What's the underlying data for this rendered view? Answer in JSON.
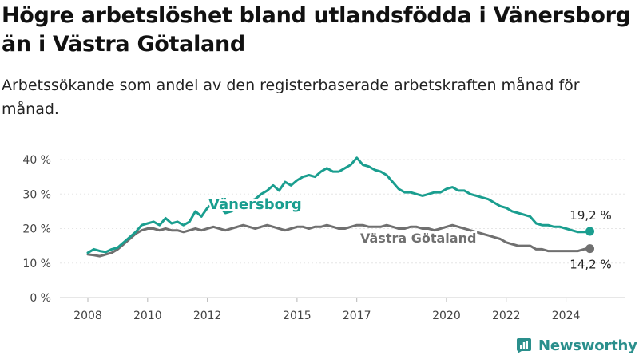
{
  "title": "Högre arbetslöshet bland utlandsfödda i Vänersborg än i Västra Götaland",
  "subtitle": "Arbetssökande som andel av den registerbaserade arbetskraften månad för månad.",
  "brand": {
    "name": "Newsworthy",
    "icon": "newsworthy-logo-icon"
  },
  "colors": {
    "accent": "#1a9e8f",
    "secondary": "#707070"
  },
  "chart_data": {
    "type": "line",
    "ylim": [
      0,
      40
    ],
    "y_ticks": [
      {
        "value": 0,
        "label": "0 %"
      },
      {
        "value": 10,
        "label": "10 %"
      },
      {
        "value": 20,
        "label": "20 %"
      },
      {
        "value": 30,
        "label": "30 %"
      },
      {
        "value": 40,
        "label": "40 %"
      }
    ],
    "x_range": [
      2008.0,
      2025.0
    ],
    "x_ticks": [
      {
        "value": 2008,
        "label": "2008"
      },
      {
        "value": 2010,
        "label": "2010"
      },
      {
        "value": 2012,
        "label": "2012"
      },
      {
        "value": 2015,
        "label": "2015"
      },
      {
        "value": 2017,
        "label": "2017"
      },
      {
        "value": 2020,
        "label": "2020"
      },
      {
        "value": 2022,
        "label": "2022"
      },
      {
        "value": 2024,
        "label": "2024"
      }
    ],
    "grid": true,
    "series": [
      {
        "name": "Vänersborg",
        "color": "#1a9e8f",
        "end_label": "19,2 %",
        "points": [
          [
            2008.0,
            13.0
          ],
          [
            2008.2,
            14.0
          ],
          [
            2008.4,
            13.5
          ],
          [
            2008.6,
            13.2
          ],
          [
            2008.8,
            14.0
          ],
          [
            2009.0,
            14.5
          ],
          [
            2009.2,
            16.0
          ],
          [
            2009.4,
            17.5
          ],
          [
            2009.6,
            19.0
          ],
          [
            2009.8,
            21.0
          ],
          [
            2010.0,
            21.5
          ],
          [
            2010.2,
            22.0
          ],
          [
            2010.4,
            21.0
          ],
          [
            2010.6,
            23.0
          ],
          [
            2010.8,
            21.5
          ],
          [
            2011.0,
            22.0
          ],
          [
            2011.2,
            21.0
          ],
          [
            2011.4,
            22.0
          ],
          [
            2011.6,
            25.0
          ],
          [
            2011.8,
            23.5
          ],
          [
            2012.0,
            26.0
          ],
          [
            2012.2,
            27.5
          ],
          [
            2012.4,
            26.5
          ],
          [
            2012.6,
            24.5
          ],
          [
            2012.8,
            25.0
          ],
          [
            2013.0,
            26.0
          ],
          [
            2013.2,
            27.0
          ],
          [
            2013.4,
            28.0
          ],
          [
            2013.6,
            28.5
          ],
          [
            2013.8,
            30.0
          ],
          [
            2014.0,
            31.0
          ],
          [
            2014.2,
            32.5
          ],
          [
            2014.4,
            31.0
          ],
          [
            2014.6,
            33.5
          ],
          [
            2014.8,
            32.5
          ],
          [
            2015.0,
            34.0
          ],
          [
            2015.2,
            35.0
          ],
          [
            2015.4,
            35.5
          ],
          [
            2015.6,
            35.0
          ],
          [
            2015.8,
            36.5
          ],
          [
            2016.0,
            37.5
          ],
          [
            2016.2,
            36.5
          ],
          [
            2016.4,
            36.5
          ],
          [
            2016.6,
            37.5
          ],
          [
            2016.8,
            38.5
          ],
          [
            2017.0,
            40.5
          ],
          [
            2017.2,
            38.5
          ],
          [
            2017.4,
            38.0
          ],
          [
            2017.6,
            37.0
          ],
          [
            2017.8,
            36.5
          ],
          [
            2018.0,
            35.5
          ],
          [
            2018.2,
            33.5
          ],
          [
            2018.4,
            31.5
          ],
          [
            2018.6,
            30.5
          ],
          [
            2018.8,
            30.5
          ],
          [
            2019.0,
            30.0
          ],
          [
            2019.2,
            29.5
          ],
          [
            2019.4,
            30.0
          ],
          [
            2019.6,
            30.5
          ],
          [
            2019.8,
            30.5
          ],
          [
            2020.0,
            31.5
          ],
          [
            2020.2,
            32.0
          ],
          [
            2020.4,
            31.0
          ],
          [
            2020.6,
            31.0
          ],
          [
            2020.8,
            30.0
          ],
          [
            2021.0,
            29.5
          ],
          [
            2021.2,
            29.0
          ],
          [
            2021.4,
            28.5
          ],
          [
            2021.6,
            27.5
          ],
          [
            2021.8,
            26.5
          ],
          [
            2022.0,
            26.0
          ],
          [
            2022.2,
            25.0
          ],
          [
            2022.4,
            24.5
          ],
          [
            2022.6,
            24.0
          ],
          [
            2022.8,
            23.5
          ],
          [
            2023.0,
            21.5
          ],
          [
            2023.2,
            21.0
          ],
          [
            2023.4,
            21.0
          ],
          [
            2023.6,
            20.5
          ],
          [
            2023.8,
            20.5
          ],
          [
            2024.0,
            20.0
          ],
          [
            2024.2,
            19.5
          ],
          [
            2024.4,
            19.0
          ],
          [
            2024.6,
            19.0
          ],
          [
            2024.8,
            19.2
          ]
        ]
      },
      {
        "name": "Västra Götaland",
        "color": "#707070",
        "end_label": "14,2 %",
        "points": [
          [
            2008.0,
            12.5
          ],
          [
            2008.2,
            12.3
          ],
          [
            2008.4,
            12.0
          ],
          [
            2008.6,
            12.5
          ],
          [
            2008.8,
            13.0
          ],
          [
            2009.0,
            14.0
          ],
          [
            2009.2,
            15.5
          ],
          [
            2009.4,
            17.0
          ],
          [
            2009.6,
            18.5
          ],
          [
            2009.8,
            19.5
          ],
          [
            2010.0,
            20.0
          ],
          [
            2010.2,
            20.0
          ],
          [
            2010.4,
            19.5
          ],
          [
            2010.6,
            20.0
          ],
          [
            2010.8,
            19.5
          ],
          [
            2011.0,
            19.5
          ],
          [
            2011.2,
            19.0
          ],
          [
            2011.4,
            19.5
          ],
          [
            2011.6,
            20.0
          ],
          [
            2011.8,
            19.5
          ],
          [
            2012.0,
            20.0
          ],
          [
            2012.2,
            20.5
          ],
          [
            2012.4,
            20.0
          ],
          [
            2012.6,
            19.5
          ],
          [
            2012.8,
            20.0
          ],
          [
            2013.0,
            20.5
          ],
          [
            2013.2,
            21.0
          ],
          [
            2013.4,
            20.5
          ],
          [
            2013.6,
            20.0
          ],
          [
            2013.8,
            20.5
          ],
          [
            2014.0,
            21.0
          ],
          [
            2014.2,
            20.5
          ],
          [
            2014.4,
            20.0
          ],
          [
            2014.6,
            19.5
          ],
          [
            2014.8,
            20.0
          ],
          [
            2015.0,
            20.5
          ],
          [
            2015.2,
            20.5
          ],
          [
            2015.4,
            20.0
          ],
          [
            2015.6,
            20.5
          ],
          [
            2015.8,
            20.5
          ],
          [
            2016.0,
            21.0
          ],
          [
            2016.2,
            20.5
          ],
          [
            2016.4,
            20.0
          ],
          [
            2016.6,
            20.0
          ],
          [
            2016.8,
            20.5
          ],
          [
            2017.0,
            21.0
          ],
          [
            2017.2,
            21.0
          ],
          [
            2017.4,
            20.5
          ],
          [
            2017.6,
            20.5
          ],
          [
            2017.8,
            20.5
          ],
          [
            2018.0,
            21.0
          ],
          [
            2018.2,
            20.5
          ],
          [
            2018.4,
            20.0
          ],
          [
            2018.6,
            20.0
          ],
          [
            2018.8,
            20.5
          ],
          [
            2019.0,
            20.5
          ],
          [
            2019.2,
            20.0
          ],
          [
            2019.4,
            20.0
          ],
          [
            2019.6,
            19.5
          ],
          [
            2019.8,
            20.0
          ],
          [
            2020.0,
            20.5
          ],
          [
            2020.2,
            21.0
          ],
          [
            2020.4,
            20.5
          ],
          [
            2020.6,
            20.0
          ],
          [
            2020.8,
            19.5
          ],
          [
            2021.0,
            19.0
          ],
          [
            2021.2,
            18.5
          ],
          [
            2021.4,
            18.0
          ],
          [
            2021.6,
            17.5
          ],
          [
            2021.8,
            17.0
          ],
          [
            2022.0,
            16.0
          ],
          [
            2022.2,
            15.5
          ],
          [
            2022.4,
            15.0
          ],
          [
            2022.6,
            15.0
          ],
          [
            2022.8,
            15.0
          ],
          [
            2023.0,
            14.0
          ],
          [
            2023.2,
            14.0
          ],
          [
            2023.4,
            13.5
          ],
          [
            2023.6,
            13.5
          ],
          [
            2023.8,
            13.5
          ],
          [
            2024.0,
            13.5
          ],
          [
            2024.2,
            13.5
          ],
          [
            2024.4,
            13.5
          ],
          [
            2024.6,
            14.0
          ],
          [
            2024.8,
            14.2
          ]
        ]
      }
    ]
  }
}
